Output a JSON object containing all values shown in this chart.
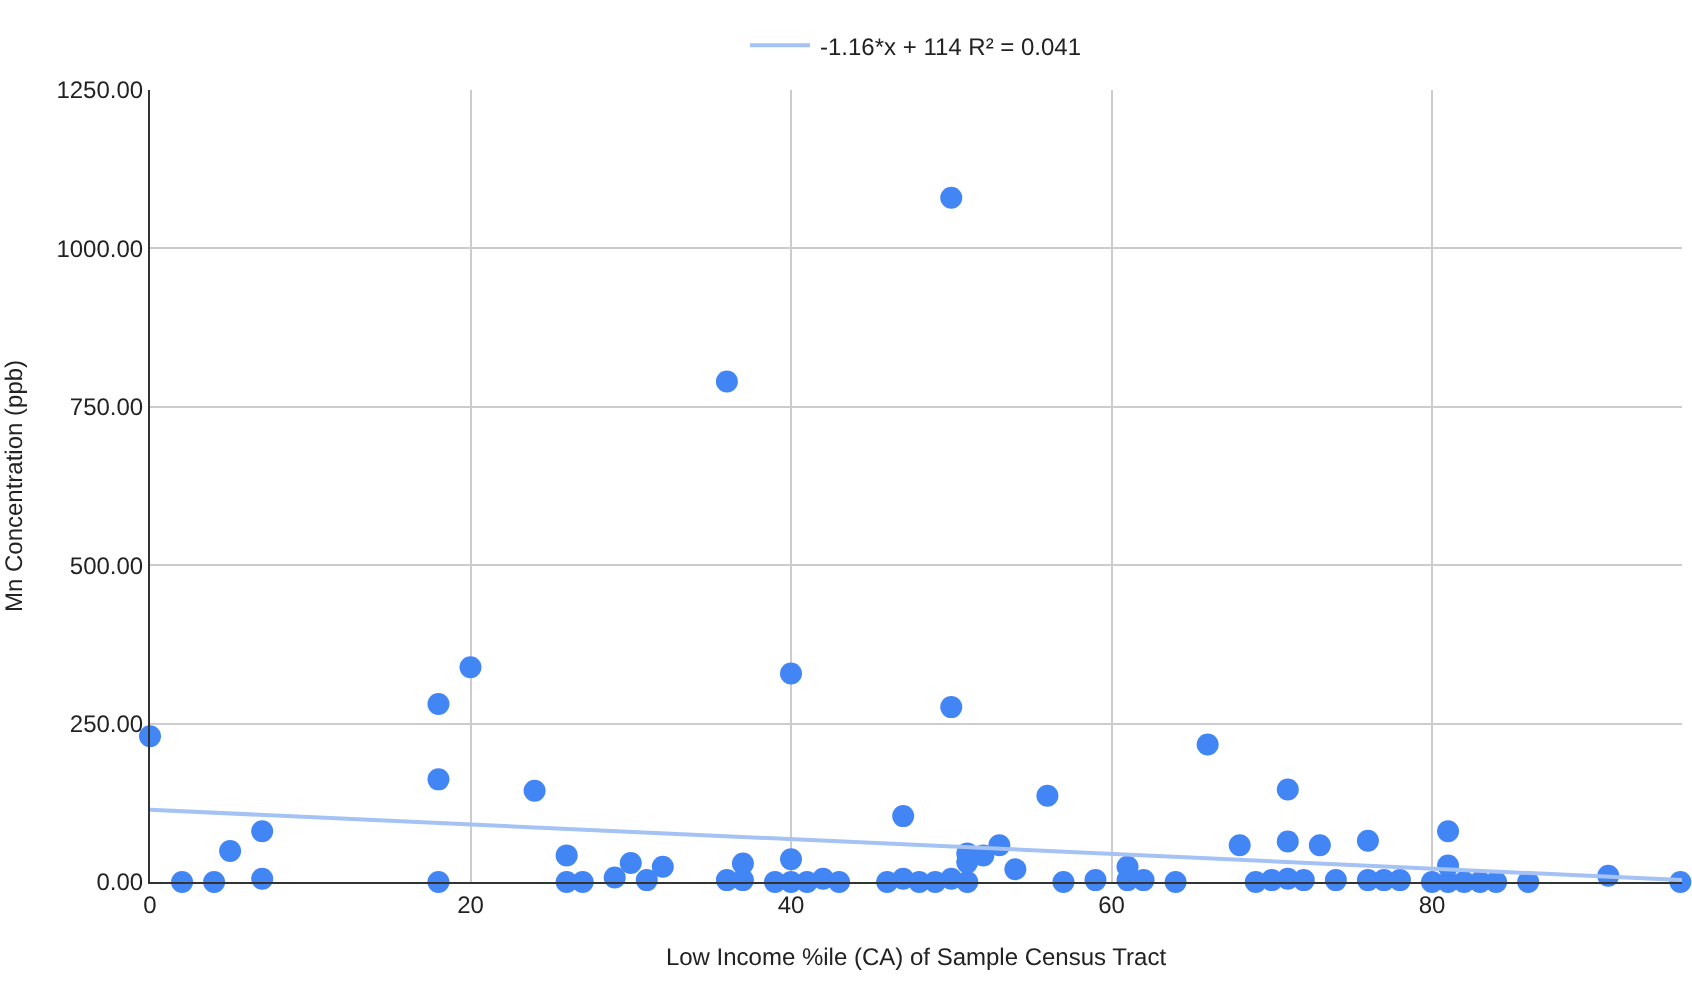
{
  "chart_data": {
    "type": "scatter",
    "xlabel": "Low Income %ile (CA) of Sample Census Tract",
    "ylabel": "Mn Concentration (ppb)",
    "series": [
      {
        "color": "#4285f4",
        "marker": "circle",
        "x": [
          0,
          2,
          4,
          5,
          7,
          7,
          18,
          18,
          18,
          20,
          24,
          26,
          26,
          27,
          29,
          30,
          31,
          32,
          36,
          36,
          37,
          37,
          40,
          40,
          39,
          40,
          41,
          42,
          43,
          46,
          47,
          48,
          49,
          50,
          51,
          47,
          50,
          50,
          51,
          51,
          52,
          53,
          54,
          56,
          57,
          59,
          61,
          61,
          62,
          64,
          66,
          68,
          69,
          70,
          71,
          72,
          71,
          71,
          73,
          74,
          76,
          76,
          77,
          78,
          80,
          81,
          81,
          81,
          82,
          83,
          84,
          86,
          91,
          95.5
        ],
        "values": [
          230,
          0,
          0,
          49,
          80,
          5,
          281,
          162,
          0,
          339,
          144,
          42,
          0,
          0,
          7,
          30,
          3,
          24,
          790,
          3,
          3,
          29,
          329,
          36,
          0,
          0,
          0,
          5,
          0,
          0,
          5,
          0,
          0,
          5,
          0,
          104,
          1080,
          276,
          31,
          45,
          42,
          58,
          20,
          136,
          0,
          3,
          24,
          3,
          3,
          0,
          217,
          58,
          0,
          3,
          5,
          3,
          146,
          64,
          58,
          3,
          65,
          3,
          3,
          3,
          0,
          0,
          80,
          26,
          0,
          0,
          0,
          0,
          10,
          0
        ]
      },
      {
        "type": "line",
        "name": "-1.16*x + 114 R² = 0.041",
        "color": "#a4c2f4",
        "x": [
          0,
          95.6
        ],
        "values": [
          114,
          3
        ]
      }
    ],
    "xlim": [
      0,
      95.6
    ],
    "xticks": [
      0,
      20,
      40,
      60,
      80
    ],
    "ylim": [
      0,
      1250
    ],
    "yticks": [
      {
        "value": 0,
        "label": "0.00"
      },
      {
        "value": 250,
        "label": "250.00"
      },
      {
        "value": 500,
        "label": "500.00"
      },
      {
        "value": 750,
        "label": "750.00"
      },
      {
        "value": 1000,
        "label": "1000.00"
      },
      {
        "value": 1250,
        "label": "1250.00"
      }
    ],
    "grid": true,
    "legend": "top"
  }
}
